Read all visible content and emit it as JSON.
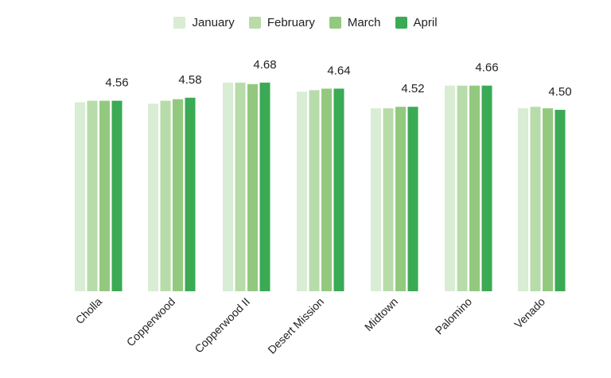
{
  "chart_data": {
    "type": "bar",
    "categories": [
      "Cholla",
      "Copperwood",
      "Copperwood II",
      "Desert Mission",
      "Midtown",
      "Palomino",
      "Venado"
    ],
    "series": [
      {
        "name": "January",
        "color": "#d9ecd4",
        "values": [
          4.55,
          4.54,
          4.68,
          4.62,
          4.51,
          4.66,
          4.51
        ]
      },
      {
        "name": "February",
        "color": "#b7dcaa",
        "values": [
          4.56,
          4.56,
          4.68,
          4.63,
          4.51,
          4.66,
          4.52
        ]
      },
      {
        "name": "March",
        "color": "#93c97f",
        "values": [
          4.56,
          4.57,
          4.67,
          4.64,
          4.52,
          4.66,
          4.51
        ]
      },
      {
        "name": "April",
        "color": "#3aaa55",
        "values": [
          4.56,
          4.58,
          4.68,
          4.64,
          4.52,
          4.66,
          4.5
        ]
      }
    ],
    "data_labels": [
      "4.56",
      "4.58",
      "4.68",
      "4.64",
      "4.52",
      "4.66",
      "4.50"
    ],
    "ylim": [
      3.3,
      4.8
    ],
    "grid": false,
    "legend_position": "top-center"
  }
}
